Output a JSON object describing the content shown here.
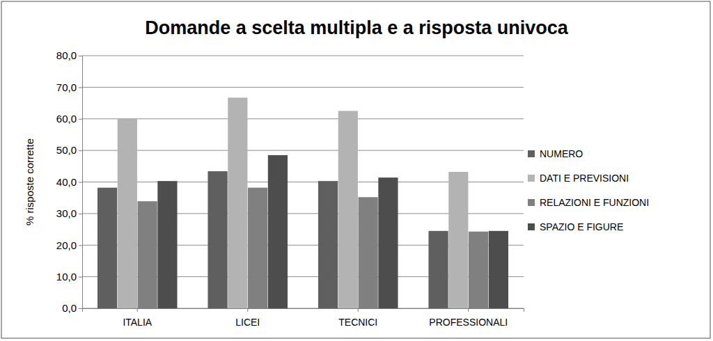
{
  "chart_data": {
    "type": "bar",
    "title": "Domande a scelta multipla e a risposta univoca",
    "y_label": "% risposte corrette",
    "categories": [
      "ITALIA",
      "LICEI",
      "TECNICI",
      "PROFESSIONALI"
    ],
    "series": [
      {
        "name": "NUMERO",
        "color": "#5f5f5f",
        "values": [
          38.2,
          43.4,
          40.3,
          24.5
        ]
      },
      {
        "name": "DATI E PREVISIONI",
        "color": "#b3b3b3",
        "values": [
          60.0,
          66.7,
          62.5,
          43.2
        ]
      },
      {
        "name": "RELAZIONI E FUNZIONI",
        "color": "#808080",
        "values": [
          33.9,
          38.2,
          35.2,
          24.3
        ]
      },
      {
        "name": "SPAZIO E FIGURE",
        "color": "#4d4d4d",
        "values": [
          40.3,
          48.5,
          41.4,
          24.5
        ]
      }
    ],
    "ylim": [
      0,
      80
    ],
    "yticks": [
      {
        "value": 0,
        "label": "0,0"
      },
      {
        "value": 10,
        "label": "10,0"
      },
      {
        "value": 20,
        "label": "20,0"
      },
      {
        "value": 30,
        "label": "30,0"
      },
      {
        "value": 40,
        "label": "40,0"
      },
      {
        "value": 50,
        "label": "50,0"
      },
      {
        "value": 60,
        "label": "60,0"
      },
      {
        "value": 70,
        "label": "70,0"
      },
      {
        "value": 80,
        "label": "80,0"
      }
    ],
    "grid": true,
    "legend": "right"
  }
}
